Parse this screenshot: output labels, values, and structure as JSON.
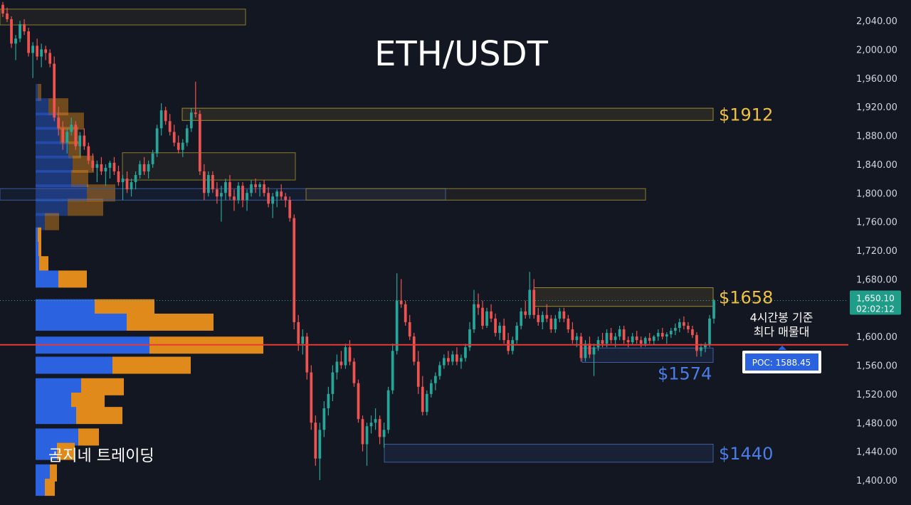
{
  "chart_data": {
    "type": "candlestick",
    "title": "ETH/USDT",
    "y_axis": {
      "side": "right",
      "ylim": [
        1380,
        2066
      ],
      "ticks": [
        "2,040.00",
        "2,000.00",
        "1,960.00",
        "1,920.00",
        "1,880.00",
        "1,840.00",
        "1,800.00",
        "1,760.00",
        "1,720.00",
        "1,680.00",
        "1,640.00",
        "1,600.00",
        "1,560.00",
        "1,520.00",
        "1,480.00",
        "1,440.00",
        "1,400.00"
      ],
      "tick_values": [
        2040,
        2000,
        1960,
        1920,
        1880,
        1840,
        1800,
        1760,
        1720,
        1680,
        1640,
        1600,
        1560,
        1520,
        1480,
        1440,
        1400
      ]
    },
    "grid": false,
    "bull_color": "#26a69a",
    "bear_color": "#ef5350",
    "candles": [
      [
        2062,
        2066,
        2045,
        2050
      ],
      [
        2050,
        2058,
        2038,
        2042
      ],
      [
        2042,
        2046,
        2002,
        2008
      ],
      [
        2008,
        2020,
        1985,
        2015
      ],
      [
        2015,
        2040,
        2010,
        2035
      ],
      [
        2035,
        2042,
        2020,
        2025
      ],
      [
        2025,
        2030,
        1990,
        1995
      ],
      [
        1995,
        2010,
        1960,
        2005
      ],
      [
        2005,
        2015,
        1985,
        1990
      ],
      [
        1990,
        2008,
        1975,
        2000
      ],
      [
        2000,
        2005,
        1985,
        1995
      ],
      [
        1995,
        2000,
        1975,
        1980
      ],
      [
        1980,
        1990,
        1900,
        1905
      ],
      [
        1905,
        1920,
        1880,
        1890
      ],
      [
        1890,
        1900,
        1860,
        1870
      ],
      [
        1870,
        1890,
        1855,
        1885
      ],
      [
        1885,
        1905,
        1880,
        1895
      ],
      [
        1895,
        1900,
        1860,
        1865
      ],
      [
        1865,
        1885,
        1850,
        1880
      ],
      [
        1880,
        1890,
        1860,
        1865
      ],
      [
        1865,
        1870,
        1840,
        1845
      ],
      [
        1845,
        1855,
        1830,
        1835
      ],
      [
        1835,
        1845,
        1815,
        1840
      ],
      [
        1840,
        1850,
        1825,
        1830
      ],
      [
        1830,
        1840,
        1810,
        1835
      ],
      [
        1835,
        1845,
        1820,
        1842
      ],
      [
        1842,
        1850,
        1825,
        1830
      ],
      [
        1830,
        1838,
        1810,
        1815
      ],
      [
        1815,
        1825,
        1790,
        1820
      ],
      [
        1820,
        1830,
        1800,
        1805
      ],
      [
        1805,
        1820,
        1795,
        1815
      ],
      [
        1815,
        1830,
        1805,
        1825
      ],
      [
        1825,
        1845,
        1820,
        1840
      ],
      [
        1840,
        1850,
        1825,
        1830
      ],
      [
        1830,
        1845,
        1820,
        1840
      ],
      [
        1840,
        1860,
        1835,
        1855
      ],
      [
        1855,
        1895,
        1850,
        1890
      ],
      [
        1890,
        1925,
        1880,
        1915
      ],
      [
        1915,
        1920,
        1895,
        1900
      ],
      [
        1900,
        1910,
        1880,
        1885
      ],
      [
        1885,
        1895,
        1865,
        1870
      ],
      [
        1870,
        1880,
        1855,
        1860
      ],
      [
        1860,
        1875,
        1850,
        1870
      ],
      [
        1870,
        1895,
        1865,
        1890
      ],
      [
        1890,
        1918,
        1885,
        1912
      ],
      [
        1912,
        1955,
        1905,
        1910
      ],
      [
        1910,
        1915,
        1825,
        1830
      ],
      [
        1830,
        1840,
        1790,
        1800
      ],
      [
        1800,
        1830,
        1795,
        1825
      ],
      [
        1825,
        1830,
        1800,
        1805
      ],
      [
        1805,
        1815,
        1785,
        1795
      ],
      [
        1795,
        1810,
        1760,
        1800
      ],
      [
        1800,
        1820,
        1790,
        1815
      ],
      [
        1815,
        1825,
        1790,
        1795
      ],
      [
        1795,
        1805,
        1775,
        1790
      ],
      [
        1790,
        1815,
        1785,
        1810
      ],
      [
        1810,
        1815,
        1780,
        1790
      ],
      [
        1790,
        1805,
        1775,
        1800
      ],
      [
        1800,
        1818,
        1795,
        1812
      ],
      [
        1812,
        1820,
        1800,
        1808
      ],
      [
        1808,
        1815,
        1795,
        1812
      ],
      [
        1812,
        1818,
        1795,
        1800
      ],
      [
        1800,
        1808,
        1780,
        1785
      ],
      [
        1785,
        1800,
        1765,
        1795
      ],
      [
        1795,
        1805,
        1780,
        1802
      ],
      [
        1802,
        1812,
        1790,
        1795
      ],
      [
        1795,
        1800,
        1780,
        1790
      ],
      [
        1790,
        1795,
        1760,
        1765
      ],
      [
        1765,
        1770,
        1610,
        1620
      ],
      [
        1620,
        1630,
        1580,
        1590
      ],
      [
        1590,
        1610,
        1575,
        1600
      ],
      [
        1600,
        1605,
        1540,
        1550
      ],
      [
        1550,
        1560,
        1470,
        1480
      ],
      [
        1480,
        1490,
        1420,
        1430
      ],
      [
        1430,
        1480,
        1400,
        1470
      ],
      [
        1470,
        1510,
        1460,
        1500
      ],
      [
        1500,
        1530,
        1490,
        1520
      ],
      [
        1520,
        1560,
        1510,
        1550
      ],
      [
        1550,
        1575,
        1540,
        1565
      ],
      [
        1565,
        1580,
        1555,
        1560
      ],
      [
        1560,
        1590,
        1555,
        1585
      ],
      [
        1585,
        1595,
        1560,
        1565
      ],
      [
        1565,
        1570,
        1530,
        1535
      ],
      [
        1535,
        1540,
        1480,
        1485
      ],
      [
        1485,
        1490,
        1440,
        1450
      ],
      [
        1450,
        1480,
        1420,
        1475
      ],
      [
        1475,
        1490,
        1465,
        1480
      ],
      [
        1480,
        1500,
        1470,
        1485
      ],
      [
        1485,
        1490,
        1450,
        1460
      ],
      [
        1460,
        1480,
        1445,
        1470
      ],
      [
        1470,
        1530,
        1465,
        1525
      ],
      [
        1525,
        1590,
        1520,
        1580
      ],
      [
        1580,
        1688,
        1575,
        1650
      ],
      [
        1650,
        1680,
        1640,
        1645
      ],
      [
        1645,
        1650,
        1615,
        1620
      ],
      [
        1620,
        1630,
        1595,
        1600
      ],
      [
        1600,
        1605,
        1560,
        1565
      ],
      [
        1565,
        1580,
        1520,
        1530
      ],
      [
        1530,
        1545,
        1490,
        1495
      ],
      [
        1495,
        1525,
        1490,
        1520
      ],
      [
        1520,
        1540,
        1515,
        1535
      ],
      [
        1535,
        1550,
        1525,
        1545
      ],
      [
        1545,
        1565,
        1540,
        1560
      ],
      [
        1560,
        1575,
        1555,
        1570
      ],
      [
        1570,
        1580,
        1560,
        1565
      ],
      [
        1565,
        1580,
        1560,
        1575
      ],
      [
        1575,
        1585,
        1560,
        1565
      ],
      [
        1565,
        1575,
        1555,
        1570
      ],
      [
        1570,
        1590,
        1565,
        1585
      ],
      [
        1585,
        1620,
        1580,
        1610
      ],
      [
        1610,
        1665,
        1605,
        1645
      ],
      [
        1645,
        1660,
        1630,
        1640
      ],
      [
        1640,
        1650,
        1610,
        1615
      ],
      [
        1615,
        1640,
        1612,
        1635
      ],
      [
        1635,
        1645,
        1620,
        1625
      ],
      [
        1625,
        1632,
        1600,
        1605
      ],
      [
        1605,
        1620,
        1595,
        1615
      ],
      [
        1615,
        1625,
        1590,
        1595
      ],
      [
        1595,
        1605,
        1575,
        1580
      ],
      [
        1580,
        1600,
        1575,
        1595
      ],
      [
        1595,
        1620,
        1590,
        1615
      ],
      [
        1615,
        1640,
        1610,
        1635
      ],
      [
        1635,
        1650,
        1625,
        1630
      ],
      [
        1630,
        1690,
        1625,
        1665
      ],
      [
        1665,
        1680,
        1625,
        1630
      ],
      [
        1630,
        1640,
        1615,
        1620
      ],
      [
        1620,
        1635,
        1610,
        1630
      ],
      [
        1630,
        1645,
        1620,
        1625
      ],
      [
        1625,
        1630,
        1605,
        1610
      ],
      [
        1610,
        1630,
        1605,
        1625
      ],
      [
        1625,
        1640,
        1620,
        1635
      ],
      [
        1635,
        1640,
        1620,
        1625
      ],
      [
        1625,
        1630,
        1605,
        1610
      ],
      [
        1610,
        1620,
        1590,
        1595
      ],
      [
        1595,
        1605,
        1585,
        1600
      ],
      [
        1600,
        1605,
        1565,
        1570
      ],
      [
        1570,
        1595,
        1565,
        1590
      ],
      [
        1590,
        1600,
        1570,
        1575
      ],
      [
        1575,
        1590,
        1545,
        1585
      ],
      [
        1585,
        1600,
        1580,
        1595
      ],
      [
        1595,
        1605,
        1585,
        1590
      ],
      [
        1590,
        1610,
        1585,
        1605
      ],
      [
        1605,
        1612,
        1590,
        1595
      ],
      [
        1595,
        1605,
        1585,
        1600
      ],
      [
        1600,
        1615,
        1595,
        1610
      ],
      [
        1610,
        1615,
        1590,
        1595
      ],
      [
        1595,
        1600,
        1585,
        1592
      ],
      [
        1592,
        1605,
        1588,
        1600
      ],
      [
        1600,
        1608,
        1590,
        1595
      ],
      [
        1595,
        1600,
        1585,
        1590
      ],
      [
        1590,
        1600,
        1586,
        1598
      ],
      [
        1598,
        1605,
        1590,
        1594
      ],
      [
        1594,
        1602,
        1588,
        1600
      ],
      [
        1600,
        1610,
        1594,
        1605
      ],
      [
        1605,
        1612,
        1596,
        1600
      ],
      [
        1600,
        1606,
        1590,
        1603
      ],
      [
        1603,
        1612,
        1598,
        1608
      ],
      [
        1608,
        1618,
        1602,
        1612
      ],
      [
        1612,
        1625,
        1606,
        1620
      ],
      [
        1620,
        1628,
        1610,
        1615
      ],
      [
        1615,
        1620,
        1605,
        1610
      ],
      [
        1610,
        1615,
        1598,
        1602
      ],
      [
        1602,
        1606,
        1572,
        1580
      ],
      [
        1580,
        1590,
        1572,
        1585
      ],
      [
        1585,
        1592,
        1578,
        1588
      ],
      [
        1588,
        1630,
        1585,
        1625
      ],
      [
        1625,
        1652,
        1618,
        1650
      ]
    ],
    "volume_profile": [
      {
        "price": 1940,
        "buy": 3,
        "sell": 5
      },
      {
        "price": 1920,
        "buy": 18,
        "sell": 28
      },
      {
        "price": 1900,
        "buy": 30,
        "sell": 38
      },
      {
        "price": 1880,
        "buy": 34,
        "sell": 26
      },
      {
        "price": 1860,
        "buy": 46,
        "sell": 18
      },
      {
        "price": 1840,
        "buy": 52,
        "sell": 30
      },
      {
        "price": 1820,
        "buy": 50,
        "sell": 24
      },
      {
        "price": 1800,
        "buy": 72,
        "sell": 40
      },
      {
        "price": 1780,
        "buy": 45,
        "sell": 50
      },
      {
        "price": 1760,
        "buy": 13,
        "sell": 20
      },
      {
        "price": 1740,
        "buy": 3,
        "sell": 5
      },
      {
        "price": 1720,
        "buy": 4,
        "sell": 4
      },
      {
        "price": 1700,
        "buy": 5,
        "sell": 13
      },
      {
        "price": 1680,
        "buy": 32,
        "sell": 40
      },
      {
        "price": 1640,
        "buy": 83,
        "sell": 84
      },
      {
        "price": 1620,
        "buy": 128,
        "sell": 122
      },
      {
        "price": 1588,
        "buy": 160,
        "sell": 160
      },
      {
        "price": 1560,
        "buy": 108,
        "sell": 110
      },
      {
        "price": 1530,
        "buy": 64,
        "sell": 60
      },
      {
        "price": 1510,
        "buy": 50,
        "sell": 47
      },
      {
        "price": 1490,
        "buy": 57,
        "sell": 65
      },
      {
        "price": 1460,
        "buy": 60,
        "sell": 29
      },
      {
        "price": 1440,
        "buy": 30,
        "sell": 25
      },
      {
        "price": 1410,
        "buy": 20,
        "sell": 10
      },
      {
        "price": 1390,
        "buy": 13,
        "sell": 14
      }
    ],
    "zones": [
      {
        "label": "$1912",
        "color": "#f0c040",
        "top": 1918,
        "bottom": 1901
      },
      {
        "label": "$1658",
        "color": "#f0c040",
        "top": 1668,
        "bottom": 1642
      },
      {
        "label": "$1574",
        "color": "#4a7de8",
        "top": 1584,
        "bottom": 1564
      },
      {
        "label": "$1440",
        "color": "#4a7de8",
        "top": 1450,
        "bottom": 1425
      }
    ],
    "extra_zones": [
      {
        "top": 2056,
        "bottom": 2034
      },
      {
        "top": 1856,
        "bottom": 1818
      },
      {
        "top": 1806,
        "bottom": 1790
      },
      {
        "top": 1806,
        "bottom": 1790
      }
    ],
    "current_price": {
      "value": "1,650.10",
      "countdown": "02:02:12",
      "price": 1650.1
    },
    "poc": {
      "label": "POC: 1588.45",
      "price": 1588.45
    },
    "annotation": [
      "4시간봉 기준",
      "최다 매물대"
    ],
    "watermark": "곰지네 트레이딩"
  }
}
